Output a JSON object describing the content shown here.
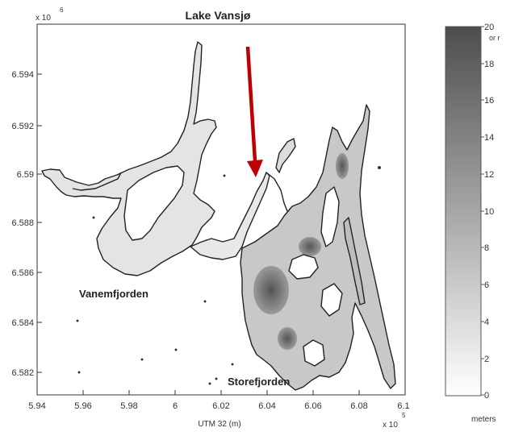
{
  "map": {
    "title": "Lake Vansjø",
    "xlabel": "UTM 32 (m)",
    "y_exponent_base": "x 10",
    "y_exponent_power": "6",
    "x_exponent_base": "x 10",
    "x_exponent_power": "5",
    "x_ticks": [
      "5.94",
      "5.96",
      "5.98",
      "6",
      "6.02",
      "6.04",
      "6.06",
      "6.08",
      "6.1"
    ],
    "y_ticks": [
      "6.594",
      "6.592",
      "6.59",
      "6.588",
      "6.586",
      "6.584",
      "6.582"
    ],
    "labels": {
      "west_basin": "Vanemfjorden",
      "east_basin": "Storefjorden"
    },
    "arrow_color": "#c00000"
  },
  "colorbar": {
    "ticks": [
      "20",
      "18",
      "16",
      "14",
      "12",
      "10",
      "8",
      "6",
      "4",
      "2",
      "0"
    ],
    "top_note": "or r",
    "unit": "meters",
    "color_max": "#4d4d4d",
    "color_min": "#ffffff"
  }
}
